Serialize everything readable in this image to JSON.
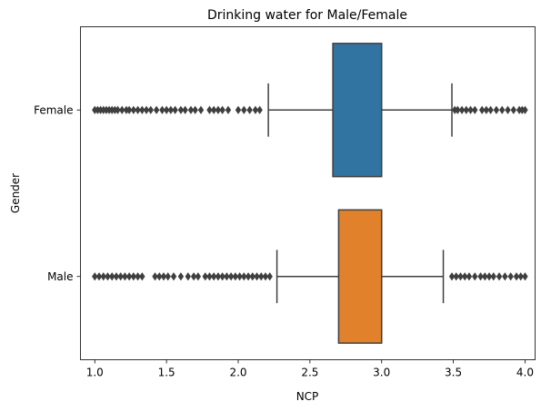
{
  "chart_data": {
    "type": "boxplot",
    "orientation": "horizontal",
    "title": "Drinking water for Male/Female",
    "xlabel": "NCP",
    "ylabel": "Gender",
    "xlim": [
      0.9,
      4.07
    ],
    "xticks": [
      1.0,
      1.5,
      2.0,
      2.5,
      3.0,
      3.5,
      4.0
    ],
    "xtick_labels": [
      "1.0",
      "1.5",
      "2.0",
      "2.5",
      "3.0",
      "3.5",
      "4.0"
    ],
    "categories": [
      "Female",
      "Male"
    ],
    "grid": false,
    "legend": "none",
    "series": [
      {
        "category": "Female",
        "color": "#3274a1",
        "whisker_low": 2.21,
        "q1": 2.66,
        "median": 3.0,
        "q3": 3.0,
        "whisker_high": 3.49,
        "outliers": [
          1.0,
          1.02,
          1.04,
          1.06,
          1.08,
          1.1,
          1.12,
          1.14,
          1.16,
          1.19,
          1.22,
          1.24,
          1.27,
          1.3,
          1.33,
          1.36,
          1.39,
          1.43,
          1.47,
          1.5,
          1.53,
          1.56,
          1.6,
          1.63,
          1.67,
          1.7,
          1.74,
          1.8,
          1.83,
          1.86,
          1.89,
          1.93,
          2.0,
          2.04,
          2.08,
          2.12,
          2.15,
          3.51,
          3.53,
          3.56,
          3.59,
          3.62,
          3.65,
          3.7,
          3.73,
          3.76,
          3.8,
          3.84,
          3.88,
          3.92,
          3.96,
          3.98,
          4.0
        ]
      },
      {
        "category": "Male",
        "color": "#e1812c",
        "whisker_low": 2.27,
        "q1": 2.7,
        "median": 3.0,
        "q3": 3.0,
        "whisker_high": 3.43,
        "outliers": [
          1.0,
          1.03,
          1.06,
          1.09,
          1.12,
          1.15,
          1.18,
          1.21,
          1.24,
          1.27,
          1.3,
          1.33,
          1.42,
          1.45,
          1.48,
          1.51,
          1.55,
          1.6,
          1.65,
          1.69,
          1.72,
          1.77,
          1.8,
          1.83,
          1.86,
          1.89,
          1.92,
          1.95,
          1.98,
          2.01,
          2.04,
          2.07,
          2.1,
          2.13,
          2.16,
          2.19,
          2.22,
          3.49,
          3.52,
          3.55,
          3.58,
          3.61,
          3.65,
          3.69,
          3.72,
          3.75,
          3.78,
          3.82,
          3.86,
          3.9,
          3.94,
          3.97,
          4.0
        ]
      }
    ]
  }
}
